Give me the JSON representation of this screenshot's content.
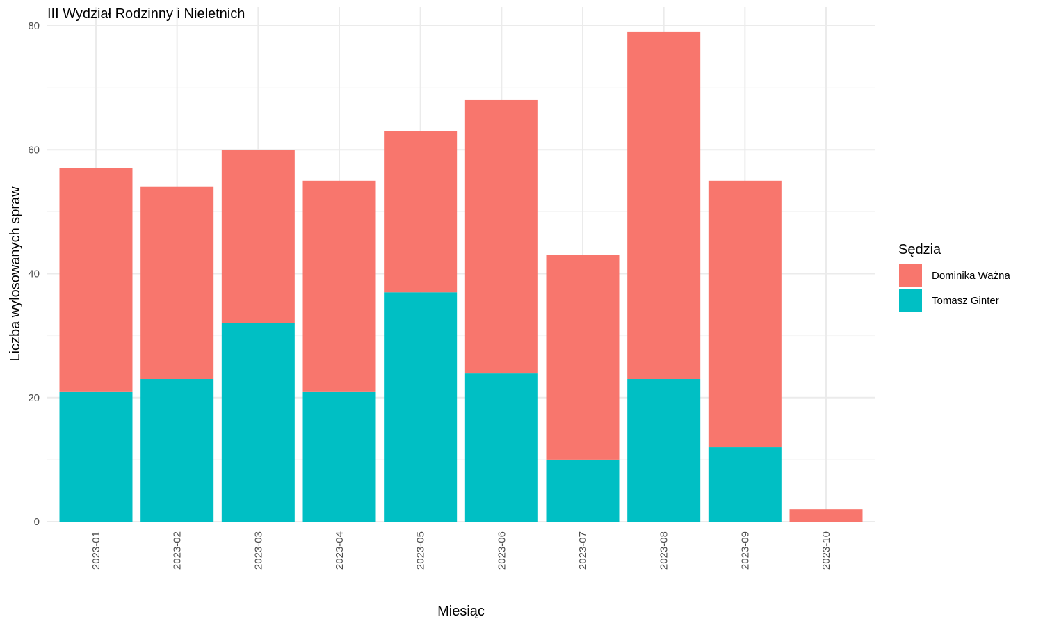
{
  "chart_data": {
    "type": "bar",
    "stacked": true,
    "title": "III Wydział Rodzinny i Nieletnich",
    "xlabel": "Miesiąc",
    "ylabel": "Liczba wylosowanych spraw",
    "ylim": [
      0,
      80
    ],
    "yticks": [
      "0",
      "20",
      "40",
      "60",
      "80"
    ],
    "grid": true,
    "legend_title": "Sędzia",
    "legend_position": "right",
    "categories": [
      "2023-01",
      "2023-02",
      "2023-03",
      "2023-04",
      "2023-05",
      "2023-06",
      "2023-07",
      "2023-08",
      "2023-09",
      "2023-10"
    ],
    "series": [
      {
        "name": "Tomasz Ginter",
        "color": "#00BFC4",
        "values": [
          21,
          23,
          32,
          21,
          37,
          24,
          10,
          23,
          12,
          0
        ]
      },
      {
        "name": "Dominika Ważna",
        "color": "#F8766D",
        "values": [
          36,
          31,
          28,
          34,
          26,
          44,
          33,
          56,
          43,
          2
        ]
      }
    ],
    "legend_order": [
      "Dominika Ważna",
      "Tomasz Ginter"
    ]
  }
}
